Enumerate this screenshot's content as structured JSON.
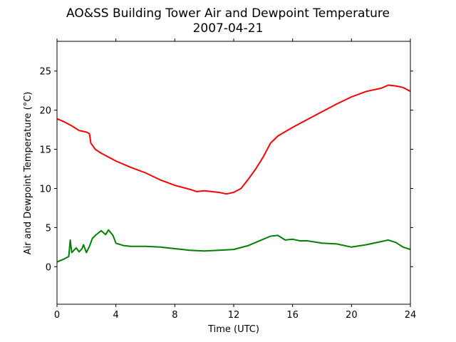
{
  "chart_data": {
    "type": "line",
    "title": "AO&SS Building Tower Air and Dewpoint Temperature",
    "subtitle": "2007-04-21",
    "xlabel": "Time (UTC)",
    "ylabel": "Air and Dewpoint Temperature (°C)",
    "xlim": [
      0,
      24
    ],
    "ylim": [
      -4.8,
      28.8
    ],
    "xticks": [
      0,
      4,
      8,
      12,
      16,
      20,
      24
    ],
    "yticks": [
      0,
      5,
      10,
      15,
      20,
      25
    ],
    "grid": false,
    "legend": "none",
    "series": [
      {
        "color": "#ff0000",
        "x": [
          0,
          0.5,
          1,
          1.5,
          2,
          2.2,
          2.3,
          2.6,
          3,
          4,
          5,
          6,
          7,
          8,
          9,
          9.5,
          10,
          11,
          11.5,
          12,
          12.5,
          13,
          13.5,
          14,
          14.5,
          15,
          16,
          17,
          18,
          19,
          20,
          21,
          22,
          22.5,
          23,
          23.5,
          24
        ],
        "y": [
          18.9,
          18.5,
          18.0,
          17.4,
          17.2,
          17.0,
          15.8,
          15.0,
          14.5,
          13.5,
          12.7,
          12.0,
          11.1,
          10.4,
          9.9,
          9.6,
          9.7,
          9.5,
          9.3,
          9.5,
          10.0,
          11.2,
          12.5,
          14.0,
          15.8,
          16.7,
          17.8,
          18.8,
          19.8,
          20.8,
          21.7,
          22.4,
          22.8,
          23.2,
          23.1,
          22.9,
          22.4
        ]
      },
      {
        "color": "#008000",
        "x": [
          0,
          0.5,
          0.8,
          0.9,
          1.0,
          1.1,
          1.3,
          1.5,
          1.7,
          1.8,
          2.0,
          2.2,
          2.4,
          2.6,
          2.8,
          3.0,
          3.3,
          3.5,
          3.8,
          4.0,
          4.5,
          5,
          6,
          7,
          8,
          9,
          10,
          11,
          12,
          13,
          14,
          14.5,
          15,
          15.5,
          16,
          16.5,
          17,
          18,
          19,
          20,
          21,
          22,
          22.5,
          23,
          23.5,
          24
        ],
        "y": [
          0.6,
          1.0,
          1.3,
          3.4,
          1.8,
          2.0,
          2.4,
          1.9,
          2.3,
          2.8,
          1.8,
          2.6,
          3.6,
          4.0,
          4.3,
          4.6,
          4.1,
          4.7,
          4.0,
          3.0,
          2.7,
          2.6,
          2.6,
          2.5,
          2.3,
          2.1,
          2.0,
          2.1,
          2.2,
          2.7,
          3.5,
          3.9,
          4.0,
          3.4,
          3.5,
          3.3,
          3.3,
          3.0,
          2.9,
          2.5,
          2.8,
          3.2,
          3.4,
          3.1,
          2.5,
          2.2
        ]
      }
    ]
  }
}
